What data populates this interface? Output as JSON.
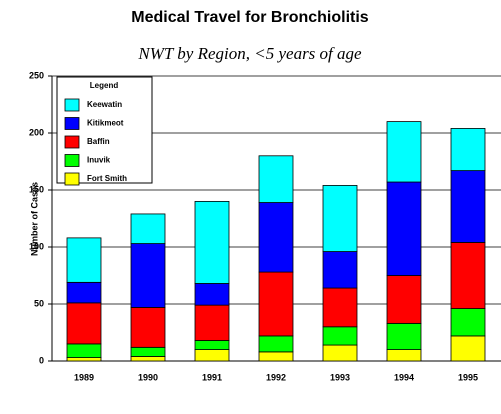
{
  "chart_data": {
    "type": "stacked_bar",
    "title": "Medical Travel for Bronchiolitis",
    "subtitle": "NWT by Region, <5 years of age",
    "y_label": "Number of Cases",
    "legend_title": "Legend",
    "legend": "upper left",
    "grid": true,
    "categories": [
      "1989",
      "1990",
      "1991",
      "1992",
      "1993",
      "1994",
      "1995"
    ],
    "series": [
      {
        "name": "Keewatin",
        "color": "#00ffff",
        "values": [
          39,
          26,
          72,
          41,
          58,
          53,
          37
        ]
      },
      {
        "name": "Kitikmeot",
        "color": "#0000ff",
        "values": [
          18,
          56,
          19,
          61,
          32,
          82,
          63
        ]
      },
      {
        "name": "Baffin",
        "color": "#ff0000",
        "values": [
          36,
          35,
          31,
          56,
          34,
          42,
          58
        ]
      },
      {
        "name": "Inuvik",
        "color": "#00ff00",
        "values": [
          12,
          8,
          8,
          14,
          16,
          23,
          24
        ]
      },
      {
        "name": "Fort Smith",
        "color": "#ffff00",
        "values": [
          3,
          4,
          10,
          8,
          14,
          10,
          22
        ]
      }
    ],
    "ylim": [
      0,
      250
    ],
    "yticks": [
      0,
      50,
      100,
      150,
      200,
      250
    ]
  }
}
